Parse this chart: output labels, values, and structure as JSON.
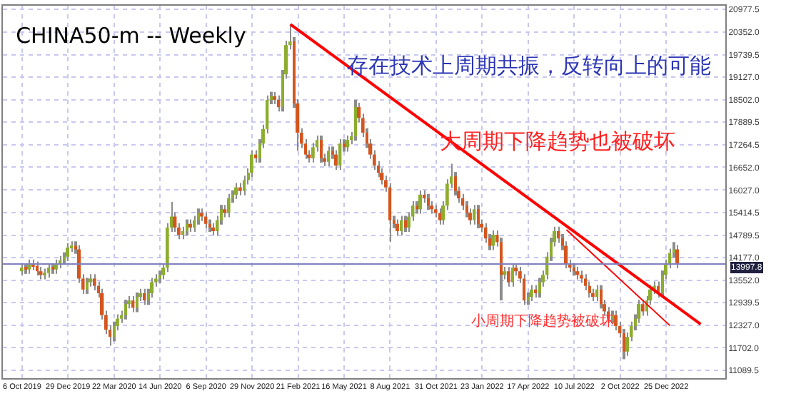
{
  "chart_data": {
    "type": "candlestick",
    "title": "CHINA50-m -- Weekly",
    "x": [
      "2019-10-06",
      "2019-10-13",
      "2019-10-20",
      "2019-10-27",
      "2019-11-03",
      "2019-11-10",
      "2019-11-17",
      "2019-11-24",
      "2019-12-01",
      "2019-12-08",
      "2019-12-15",
      "2019-12-22",
      "2019-12-29",
      "2020-01-05",
      "2020-01-12",
      "2020-01-19",
      "2020-01-26",
      "2020-02-02",
      "2020-02-09",
      "2020-02-16",
      "2020-02-23",
      "2020-03-01",
      "2020-03-08",
      "2020-03-15",
      "2020-03-22",
      "2020-03-29",
      "2020-04-05",
      "2020-04-12",
      "2020-04-19",
      "2020-04-26",
      "2020-05-03",
      "2020-05-10",
      "2020-05-17",
      "2020-05-24",
      "2020-05-31",
      "2020-06-07",
      "2020-06-14",
      "2020-06-21",
      "2020-06-28",
      "2020-07-05",
      "2020-07-12",
      "2020-07-19",
      "2020-07-26",
      "2020-08-02",
      "2020-08-09",
      "2020-08-16",
      "2020-08-23",
      "2020-08-30",
      "2020-09-06",
      "2020-09-13",
      "2020-09-20",
      "2020-09-27",
      "2020-10-04",
      "2020-10-11",
      "2020-10-18",
      "2020-10-25",
      "2020-11-01",
      "2020-11-08",
      "2020-11-15",
      "2020-11-22",
      "2020-11-29",
      "2020-12-06",
      "2020-12-13",
      "2020-12-20",
      "2020-12-27",
      "2021-01-03",
      "2021-01-10",
      "2021-01-17",
      "2021-01-24",
      "2021-01-31",
      "2021-02-07",
      "2021-02-14",
      "2021-02-21",
      "2021-02-28",
      "2021-03-07",
      "2021-03-14",
      "2021-03-21",
      "2021-03-28",
      "2021-04-04",
      "2021-04-11",
      "2021-04-18",
      "2021-04-25",
      "2021-05-02",
      "2021-05-09",
      "2021-05-16",
      "2021-05-23",
      "2021-05-30",
      "2021-06-06",
      "2021-06-13",
      "2021-06-20",
      "2021-06-27",
      "2021-07-04",
      "2021-07-11",
      "2021-07-18",
      "2021-07-25",
      "2021-08-01",
      "2021-08-08",
      "2021-08-15",
      "2021-08-22",
      "2021-08-29",
      "2021-09-05",
      "2021-09-12",
      "2021-09-19",
      "2021-09-26",
      "2021-10-03",
      "2021-10-10",
      "2021-10-17",
      "2021-10-24",
      "2021-10-31",
      "2021-11-07",
      "2021-11-14",
      "2021-11-21",
      "2021-11-28",
      "2021-12-05",
      "2021-12-12",
      "2021-12-19",
      "2021-12-26",
      "2022-01-02",
      "2022-01-09",
      "2022-01-16",
      "2022-01-23",
      "2022-01-30",
      "2022-02-06",
      "2022-02-13",
      "2022-02-20",
      "2022-02-27",
      "2022-03-06",
      "2022-03-13",
      "2022-03-20",
      "2022-03-27",
      "2022-04-03",
      "2022-04-10",
      "2022-04-17",
      "2022-04-24",
      "2022-05-01",
      "2022-05-08",
      "2022-05-15",
      "2022-05-22",
      "2022-05-29",
      "2022-06-05",
      "2022-06-12",
      "2022-06-19",
      "2022-06-26",
      "2022-07-03",
      "2022-07-10",
      "2022-07-17",
      "2022-07-24",
      "2022-07-31",
      "2022-08-07",
      "2022-08-14",
      "2022-08-21",
      "2022-08-28",
      "2022-09-04",
      "2022-09-11",
      "2022-09-18",
      "2022-09-25",
      "2022-10-02",
      "2022-10-09",
      "2022-10-16",
      "2022-10-23",
      "2022-10-30",
      "2022-11-06",
      "2022-11-13",
      "2022-11-20",
      "2022-11-27",
      "2022-12-04",
      "2022-12-11",
      "2022-12-18",
      "2022-12-25",
      "2023-01-01",
      "2023-01-08",
      "2023-01-15"
    ],
    "ohlc": [
      [
        13800,
        14020,
        13680,
        13900
      ],
      [
        13900,
        14020,
        13730,
        13850
      ],
      [
        13850,
        14120,
        13730,
        14000
      ],
      [
        14000,
        14120,
        13830,
        13950
      ],
      [
        13950,
        14070,
        13680,
        13800
      ],
      [
        13800,
        13920,
        13580,
        13700
      ],
      [
        13700,
        13870,
        13580,
        13750
      ],
      [
        13750,
        14020,
        13630,
        13900
      ],
      [
        13900,
        14020,
        13730,
        13850
      ],
      [
        13850,
        14120,
        13730,
        14000
      ],
      [
        14000,
        14220,
        13880,
        14100
      ],
      [
        14100,
        14320,
        13980,
        14200
      ],
      [
        14200,
        14570,
        14080,
        14450
      ],
      [
        14450,
        14620,
        14330,
        14500
      ],
      [
        14500,
        14620,
        14280,
        14400
      ],
      [
        14400,
        14520,
        13480,
        13600
      ],
      [
        13600,
        13720,
        13180,
        13300
      ],
      [
        13300,
        13620,
        13180,
        13500
      ],
      [
        13500,
        13720,
        13380,
        13600
      ],
      [
        13600,
        13720,
        13280,
        13400
      ],
      [
        13400,
        13520,
        13080,
        13200
      ],
      [
        13200,
        13320,
        12480,
        12600
      ],
      [
        12600,
        12720,
        12080,
        12200
      ],
      [
        12200,
        12320,
        11760,
        12000
      ],
      [
        12000,
        12420,
        11880,
        12300
      ],
      [
        12300,
        12620,
        12180,
        12500
      ],
      [
        12500,
        12720,
        12380,
        12600
      ],
      [
        12600,
        13020,
        12480,
        12900
      ],
      [
        12900,
        13120,
        12780,
        13000
      ],
      [
        13000,
        13120,
        12680,
        12800
      ],
      [
        12800,
        13220,
        12680,
        13100
      ],
      [
        13100,
        13320,
        12980,
        13200
      ],
      [
        13200,
        13320,
        12880,
        13000
      ],
      [
        13000,
        13320,
        12880,
        13200
      ],
      [
        13200,
        13620,
        13080,
        13500
      ],
      [
        13500,
        13720,
        13380,
        13600
      ],
      [
        13600,
        13820,
        13480,
        13700
      ],
      [
        13700,
        14020,
        13580,
        13900
      ],
      [
        13900,
        15120,
        13780,
        15000
      ],
      [
        15000,
        15700,
        14880,
        15300
      ],
      [
        15300,
        15420,
        14880,
        15000
      ],
      [
        15000,
        15120,
        14680,
        14800
      ],
      [
        14800,
        15020,
        14680,
        14900
      ],
      [
        14900,
        15220,
        14780,
        15100
      ],
      [
        15100,
        15220,
        14880,
        15000
      ],
      [
        15000,
        15320,
        14880,
        15200
      ],
      [
        15200,
        15520,
        15080,
        15400
      ],
      [
        15400,
        15520,
        15180,
        15300
      ],
      [
        15300,
        15420,
        14980,
        15100
      ],
      [
        15100,
        15220,
        14880,
        15000
      ],
      [
        15000,
        15120,
        14780,
        14900
      ],
      [
        14900,
        15320,
        14780,
        15200
      ],
      [
        15200,
        15620,
        15080,
        15500
      ],
      [
        15500,
        15620,
        15280,
        15400
      ],
      [
        15400,
        15920,
        15280,
        15800
      ],
      [
        15800,
        16020,
        15680,
        15900
      ],
      [
        15900,
        16220,
        15780,
        16100
      ],
      [
        16100,
        16220,
        15880,
        16000
      ],
      [
        16000,
        16420,
        15880,
        16300
      ],
      [
        16300,
        16620,
        16180,
        16500
      ],
      [
        16500,
        17120,
        16380,
        17000
      ],
      [
        17000,
        17120,
        16780,
        16900
      ],
      [
        16900,
        17420,
        16780,
        17300
      ],
      [
        17300,
        17820,
        17180,
        17700
      ],
      [
        17700,
        18620,
        17580,
        18500
      ],
      [
        18500,
        18720,
        18380,
        18600
      ],
      [
        18600,
        18720,
        18380,
        18500
      ],
      [
        18500,
        18620,
        18180,
        18300
      ],
      [
        18300,
        19320,
        18180,
        19200
      ],
      [
        19200,
        20120,
        19080,
        20000
      ],
      [
        20000,
        20570,
        19880,
        20100
      ],
      [
        20100,
        20220,
        18280,
        18400
      ],
      [
        18400,
        18520,
        17100,
        17600
      ],
      [
        17600,
        17720,
        17180,
        17300
      ],
      [
        17300,
        17420,
        16880,
        17000
      ],
      [
        17000,
        17120,
        16780,
        16900
      ],
      [
        16900,
        17320,
        16780,
        17200
      ],
      [
        17200,
        17520,
        17080,
        17400
      ],
      [
        17400,
        17520,
        16780,
        16900
      ],
      [
        16900,
        17020,
        16680,
        16800
      ],
      [
        16800,
        17220,
        16680,
        17100
      ],
      [
        17100,
        17220,
        16880,
        17000
      ],
      [
        17000,
        17120,
        16580,
        16700
      ],
      [
        16700,
        17420,
        16580,
        17300
      ],
      [
        17300,
        17420,
        17080,
        17200
      ],
      [
        17200,
        17520,
        17080,
        17400
      ],
      [
        17400,
        17620,
        17280,
        17500
      ],
      [
        17500,
        18500,
        17380,
        18300
      ],
      [
        18300,
        18420,
        17880,
        18000
      ],
      [
        18000,
        18120,
        17480,
        17600
      ],
      [
        17600,
        17720,
        17180,
        17300
      ],
      [
        17300,
        17420,
        16880,
        17000
      ],
      [
        17000,
        17120,
        16580,
        16700
      ],
      [
        16700,
        16820,
        16380,
        16500
      ],
      [
        16500,
        16620,
        16180,
        16300
      ],
      [
        16300,
        16420,
        15980,
        16100
      ],
      [
        16100,
        16220,
        14600,
        15200
      ],
      [
        15200,
        15320,
        14980,
        15100
      ],
      [
        15100,
        15220,
        14780,
        14900
      ],
      [
        14900,
        15320,
        14780,
        15200
      ],
      [
        15200,
        15320,
        14880,
        15000
      ],
      [
        15000,
        15420,
        14880,
        15300
      ],
      [
        15300,
        15720,
        15180,
        15600
      ],
      [
        15600,
        15720,
        15380,
        15500
      ],
      [
        15500,
        16020,
        15380,
        15900
      ],
      [
        15900,
        16020,
        15680,
        15800
      ],
      [
        15800,
        15920,
        15480,
        15600
      ],
      [
        15600,
        15720,
        15380,
        15500
      ],
      [
        15500,
        15620,
        15280,
        15400
      ],
      [
        15400,
        15520,
        15080,
        15200
      ],
      [
        15200,
        15720,
        15080,
        15600
      ],
      [
        15600,
        16320,
        15480,
        16200
      ],
      [
        16200,
        16750,
        16080,
        16400
      ],
      [
        16400,
        16520,
        15880,
        16000
      ],
      [
        16000,
        16120,
        15680,
        15800
      ],
      [
        15800,
        15920,
        15480,
        15600
      ],
      [
        15600,
        15720,
        15280,
        15400
      ],
      [
        15400,
        15520,
        15080,
        15200
      ],
      [
        15200,
        15620,
        15080,
        15500
      ],
      [
        15500,
        15620,
        14980,
        15100
      ],
      [
        15100,
        15220,
        14880,
        15000
      ],
      [
        15000,
        15120,
        14580,
        14700
      ],
      [
        14700,
        14820,
        14380,
        14500
      ],
      [
        14500,
        14920,
        14380,
        14800
      ],
      [
        14800,
        14920,
        14480,
        14600
      ],
      [
        14600,
        14720,
        13000,
        13700
      ],
      [
        13700,
        13920,
        13580,
        13800
      ],
      [
        13800,
        13920,
        13380,
        13500
      ],
      [
        13500,
        14020,
        13380,
        13900
      ],
      [
        13900,
        14020,
        13680,
        13800
      ],
      [
        13800,
        13920,
        13480,
        13600
      ],
      [
        13600,
        13720,
        12880,
        13000
      ],
      [
        13000,
        13220,
        12880,
        13100
      ],
      [
        13100,
        13420,
        12980,
        13300
      ],
      [
        13300,
        13420,
        13080,
        13200
      ],
      [
        13200,
        13620,
        13080,
        13500
      ],
      [
        13500,
        13820,
        13380,
        13700
      ],
      [
        13700,
        14320,
        13580,
        14200
      ],
      [
        14200,
        14720,
        14080,
        14600
      ],
      [
        14600,
        15020,
        14480,
        14900
      ],
      [
        14900,
        15020,
        14580,
        14700
      ],
      [
        14700,
        14820,
        14380,
        14500
      ],
      [
        14500,
        14620,
        13880,
        14000
      ],
      [
        14000,
        14120,
        13780,
        13900
      ],
      [
        13900,
        14020,
        13680,
        13800
      ],
      [
        13800,
        13920,
        13580,
        13700
      ],
      [
        13700,
        13820,
        13480,
        13600
      ],
      [
        13600,
        13720,
        13280,
        13400
      ],
      [
        13400,
        13520,
        13080,
        13200
      ],
      [
        13200,
        13320,
        12980,
        13100
      ],
      [
        13100,
        13420,
        12980,
        13300
      ],
      [
        13300,
        13420,
        12780,
        12900
      ],
      [
        12900,
        13020,
        12580,
        12700
      ],
      [
        12700,
        12820,
        12380,
        12500
      ],
      [
        12500,
        12720,
        12380,
        12600
      ],
      [
        12600,
        12720,
        12180,
        12300
      ],
      [
        12300,
        12420,
        11980,
        12100
      ],
      [
        12100,
        12220,
        11390,
        11600
      ],
      [
        11600,
        12120,
        11480,
        12000
      ],
      [
        12000,
        12420,
        11880,
        12300
      ],
      [
        12300,
        12620,
        12180,
        12500
      ],
      [
        12500,
        13020,
        12380,
        12900
      ],
      [
        12900,
        13020,
        12580,
        12700
      ],
      [
        12700,
        13120,
        12580,
        13000
      ],
      [
        13000,
        13420,
        12880,
        13300
      ],
      [
        13300,
        13520,
        13180,
        13400
      ],
      [
        13400,
        13520,
        13080,
        13200
      ],
      [
        13200,
        13820,
        13080,
        13700
      ],
      [
        13700,
        14120,
        13580,
        14000
      ],
      [
        14000,
        14420,
        13880,
        14300
      ],
      [
        14300,
        14600,
        14180,
        14400
      ],
      [
        14400,
        14520,
        13880,
        13997.8
      ]
    ],
    "series": [
      {
        "type": "line",
        "color": "#ff0000",
        "x": [
          "2021-02-07",
          "2023-02-26"
        ],
        "values": [
          20570,
          12350
        ]
      },
      {
        "type": "line",
        "color": "#ff0000",
        "x": [
          "2022-06-26",
          "2023-01-01"
        ],
        "values": [
          14940,
          12310
        ]
      }
    ],
    "ref_lines": [
      {
        "axis": "y",
        "value": 13997.8,
        "label": "13997.8",
        "color": "#8080c0"
      }
    ],
    "annotations": [
      "存在技术上周期共振，反转向上的可能",
      "大周期下降趋势也被破坏",
      "小周期下降趋势被破坏"
    ],
    "xlim": [
      "2019-09-01",
      "2023-04-12"
    ],
    "xticks": [
      {
        "value": "2019-10-06",
        "label": "6 Oct 2019"
      },
      {
        "value": "2019-12-29",
        "label": "29 Dec 2019"
      },
      {
        "value": "2020-03-22",
        "label": "22 Mar 2020"
      },
      {
        "value": "2020-06-14",
        "label": "14 Jun 2020"
      },
      {
        "value": "2020-09-06",
        "label": "6 Sep 2020"
      },
      {
        "value": "2020-11-29",
        "label": "29 Nov 2020"
      },
      {
        "value": "2021-02-21",
        "label": "21 Feb 2021"
      },
      {
        "value": "2021-05-16",
        "label": "16 May 2021"
      },
      {
        "value": "2021-08-08",
        "label": "8 Aug 2021"
      },
      {
        "value": "2021-10-31",
        "label": "31 Oct 2021"
      },
      {
        "value": "2022-01-23",
        "label": "23 Jan 2022"
      },
      {
        "value": "2022-04-17",
        "label": "17 Apr 2022"
      },
      {
        "value": "2022-07-10",
        "label": "10 Jul 2022"
      },
      {
        "value": "2022-10-02",
        "label": "2 Oct 2022"
      },
      {
        "value": "2022-12-25",
        "label": "25 Dec 2022"
      }
    ],
    "ylim": [
      10870,
      21080
    ],
    "yticks": [
      {
        "value": 20977.5,
        "label": "20977.5"
      },
      {
        "value": 20352,
        "label": "20352.0"
      },
      {
        "value": 19739.5,
        "label": "19739.5"
      },
      {
        "value": 19127,
        "label": "19127.0"
      },
      {
        "value": 18502,
        "label": "18502.0"
      },
      {
        "value": 17889.5,
        "label": "17889.5"
      },
      {
        "value": 17264.5,
        "label": "17264.5"
      },
      {
        "value": 16652,
        "label": "16652.0"
      },
      {
        "value": 16027,
        "label": "16027.0"
      },
      {
        "value": 15414.5,
        "label": "15414.5"
      },
      {
        "value": 14789.5,
        "label": "14789.5"
      },
      {
        "value": 14177,
        "label": "14177.0"
      },
      {
        "value": 13552,
        "label": "13552.0"
      },
      {
        "value": 12939.5,
        "label": "12939.5"
      },
      {
        "value": 12327,
        "label": "12327.0"
      },
      {
        "value": 11702,
        "label": "11702.0"
      },
      {
        "value": 11089.5,
        "label": "11089.5"
      }
    ],
    "grid": true
  }
}
